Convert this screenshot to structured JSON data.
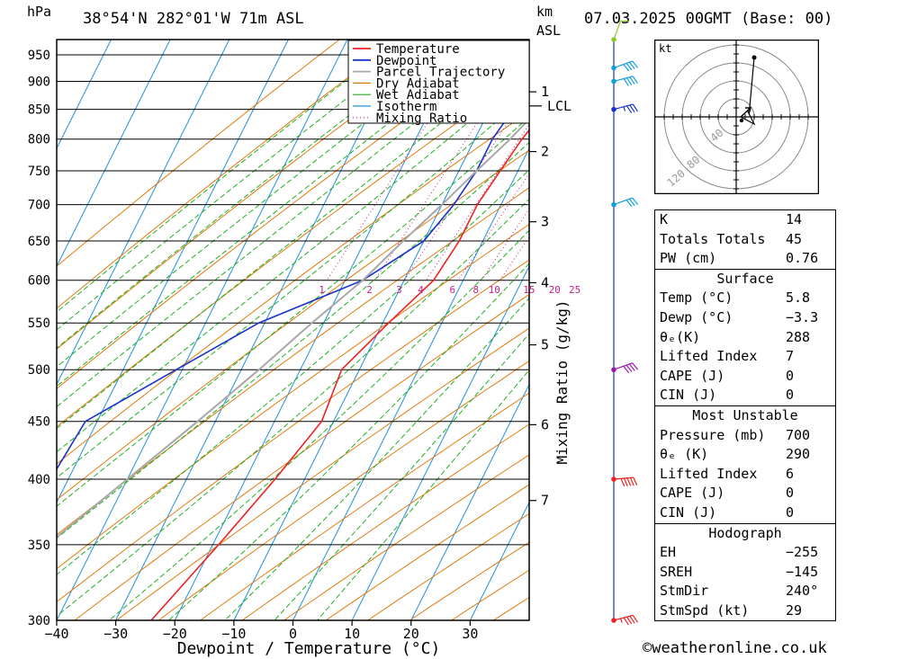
{
  "header": {
    "pressure_unit": "hPa",
    "location": "38°54'N 282°01'W 71m ASL",
    "km_unit": "km",
    "asl": "ASL",
    "datetime": "07.03.2025 00GMT (Base: 00)"
  },
  "colors": {
    "temperature": "#ee2222",
    "dewpoint": "#1a33cc",
    "parcel": "#a8a8a8",
    "dry_adiabat": "#e07b10",
    "wet_adiabat": "#20b020",
    "isotherm": "#1e90e0",
    "mixing_ratio": "#cc1a8a",
    "wind": "#1a33cc"
  },
  "chart_data": {
    "type": "line",
    "xlabel": "Dewpoint / Temperature (°C)",
    "ylabel_right": "Mixing Ratio (g/kg)",
    "xlim": [
      -40,
      40
    ],
    "ylim_hpa": [
      980,
      300
    ],
    "x_ticks": [
      -40,
      -30,
      -20,
      -10,
      0,
      10,
      20,
      30
    ],
    "p_ticks": [
      300,
      350,
      400,
      450,
      500,
      550,
      600,
      650,
      700,
      750,
      800,
      850,
      900,
      950
    ],
    "km_ticks": [
      {
        "label": "7",
        "p": 383
      },
      {
        "label": "6",
        "p": 447
      },
      {
        "label": "5",
        "p": 526
      },
      {
        "label": "4",
        "p": 597
      },
      {
        "label": "3",
        "p": 676
      },
      {
        "label": "2",
        "p": 780
      },
      {
        "label": "1",
        "p": 881
      }
    ],
    "lcl": {
      "label": "LCL",
      "p": 856
    },
    "legend": [
      "Temperature",
      "Dewpoint",
      "Parcel Trajectory",
      "Dry Adiabat",
      "Wet Adiabat",
      "Isotherm",
      "Mixing Ratio"
    ],
    "mixing_ratio_labels": [
      1,
      2,
      3,
      4,
      6,
      8,
      10,
      15,
      20,
      25
    ],
    "mixing_ratio_label_p": 590,
    "series": [
      {
        "name": "Temperature",
        "points": [
          [
            6,
            980
          ],
          [
            4.5,
            950
          ],
          [
            2,
            900
          ],
          [
            -0.5,
            850
          ],
          [
            -2,
            800
          ],
          [
            -3,
            750
          ],
          [
            -4,
            700
          ],
          [
            -4,
            650
          ],
          [
            -5,
            600
          ],
          [
            -9,
            550
          ],
          [
            -13,
            500
          ],
          [
            -12,
            450
          ],
          [
            -15,
            400
          ],
          [
            -19,
            350
          ],
          [
            -24,
            300
          ]
        ]
      },
      {
        "name": "Dewpoint",
        "points": [
          [
            -3,
            980
          ],
          [
            -3,
            950
          ],
          [
            -4,
            900
          ],
          [
            -6,
            850
          ],
          [
            -7,
            800
          ],
          [
            -7,
            750
          ],
          [
            -8,
            700
          ],
          [
            -10,
            650
          ],
          [
            -17,
            600
          ],
          [
            -31,
            550
          ],
          [
            -41,
            500
          ],
          [
            -52,
            450
          ],
          [
            -53,
            400
          ],
          [
            -58,
            350
          ],
          [
            -64,
            300
          ]
        ]
      },
      {
        "name": "Parcel Trajectory",
        "points": [
          [
            6,
            980
          ],
          [
            3,
            925
          ],
          [
            0,
            880
          ],
          [
            -1.5,
            856
          ],
          [
            -4,
            800
          ],
          [
            -7,
            750
          ],
          [
            -10,
            700
          ],
          [
            -13.5,
            650
          ],
          [
            -17,
            600
          ],
          [
            -22,
            550
          ],
          [
            -27,
            500
          ],
          [
            -33,
            450
          ],
          [
            -40,
            400
          ],
          [
            -48,
            350
          ],
          [
            -57,
            300
          ]
        ]
      }
    ],
    "wind_barbs": [
      {
        "p": 980,
        "dir": 200,
        "kt": 10
      },
      {
        "p": 925,
        "dir": 250,
        "kt": 40
      },
      {
        "p": 900,
        "dir": 255,
        "kt": 40
      },
      {
        "p": 850,
        "dir": 255,
        "kt": 35
      },
      {
        "p": 700,
        "dir": 250,
        "kt": 30
      },
      {
        "p": 500,
        "dir": 250,
        "kt": 40
      },
      {
        "p": 400,
        "dir": 265,
        "kt": 50
      },
      {
        "p": 300,
        "dir": 255,
        "kt": 45
      }
    ]
  },
  "hodograph": {
    "unit": "kt",
    "ring_labels": [
      "40",
      "80",
      "120"
    ]
  },
  "indices": {
    "k_label": "K",
    "k": "14",
    "tt_label": "Totals Totals",
    "tt": "45",
    "pw_label": "PW (cm)",
    "pw": "0.76"
  },
  "surface": {
    "title": "Surface",
    "temp_label": "Temp (°C)",
    "temp": "5.8",
    "dewp_label": "Dewp (°C)",
    "dewp": "−3.3",
    "theta_label": "θₑ(K)",
    "theta": "288",
    "li_label": "Lifted Index",
    "li": "7",
    "cape_label": "CAPE (J)",
    "cape": "0",
    "cin_label": "CIN (J)",
    "cin": "0"
  },
  "most_unstable": {
    "title": "Most Unstable",
    "pressure_label": "Pressure (mb)",
    "pressure": "700",
    "theta_label": "θₑ (K)",
    "theta": "290",
    "li_label": "Lifted Index",
    "li": "6",
    "cape_label": "CAPE (J)",
    "cape": "0",
    "cin_label": "CIN (J)",
    "cin": "0"
  },
  "hodo_panel": {
    "title": "Hodograph",
    "eh_label": "EH",
    "eh": "−255",
    "sreh_label": "SREH",
    "sreh": "−145",
    "stmdir_label": "StmDir",
    "stmdir": "240°",
    "stmspd_label": "StmSpd (kt)",
    "stmspd": "29"
  },
  "footer": {
    "copyright": "©weatheronline.co.uk"
  }
}
